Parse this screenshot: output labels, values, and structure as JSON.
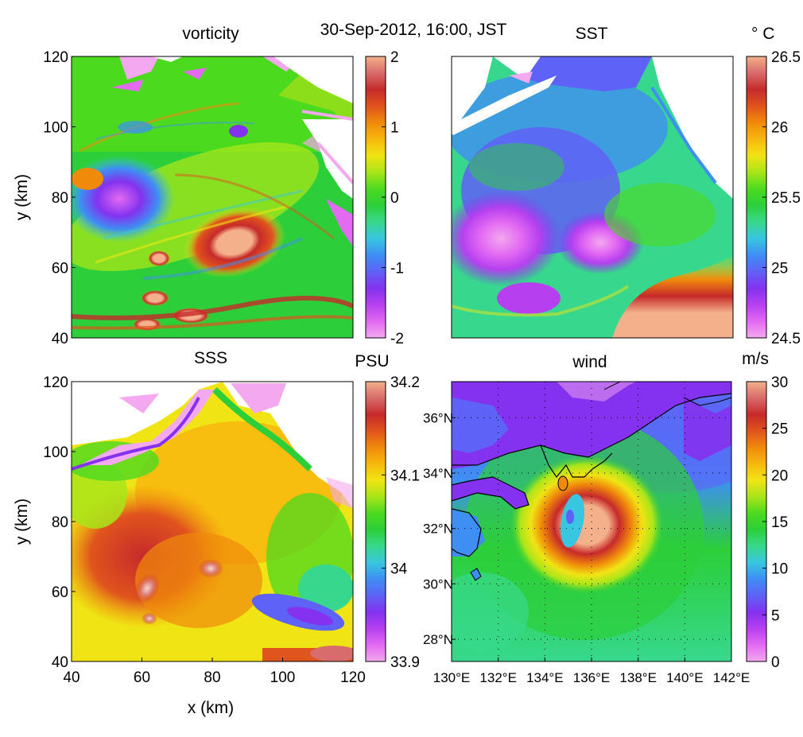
{
  "figure_title": "30-Sep-2012, 16:00, JST",
  "colors": {
    "colormap": [
      "#f3a8ef",
      "#e36af2",
      "#b640f0",
      "#8432ef",
      "#5f62f6",
      "#3e8ef4",
      "#38c6e0",
      "#37d88d",
      "#2ccf39",
      "#4cda1f",
      "#a8e51a",
      "#f0e414",
      "#f7b80e",
      "#f08a0b",
      "#e0541d",
      "#c62a2a",
      "#d86b6b",
      "#f4b08a"
    ],
    "coast": "#000000",
    "grid_dots": "#000000"
  },
  "chart_data": [
    {
      "type": "heatmap",
      "title": "vorticity",
      "unit": "",
      "xlim": [
        40,
        120
      ],
      "ylim": [
        40,
        120
      ],
      "xticks": [
        "40",
        "60",
        "80",
        "100",
        "120"
      ],
      "yticks": [
        "40",
        "60",
        "80",
        "100",
        "120"
      ],
      "ylabel": "y (km)",
      "xlabel": "",
      "colorbar_ticks": [
        "-2",
        "-1",
        "0",
        "1",
        "2"
      ],
      "clim": [
        -2,
        2
      ]
    },
    {
      "type": "heatmap",
      "title": "SST",
      "unit": "° C",
      "xlim": [
        40,
        120
      ],
      "ylim": [
        40,
        120
      ],
      "colorbar_ticks": [
        "24.5",
        "25",
        "25.5",
        "26",
        "26.5"
      ],
      "clim": [
        24.5,
        26.5
      ]
    },
    {
      "type": "heatmap",
      "title": "SSS",
      "unit": "PSU",
      "xlim": [
        40,
        120
      ],
      "ylim": [
        40,
        120
      ],
      "xticks": [
        "40",
        "60",
        "80",
        "100",
        "120"
      ],
      "yticks": [
        "40",
        "60",
        "80",
        "100",
        "120"
      ],
      "xlabel": "x (km)",
      "ylabel": "y (km)",
      "colorbar_ticks": [
        "33.9",
        "34",
        "34.1",
        "34.2"
      ],
      "clim": [
        33.9,
        34.2
      ]
    },
    {
      "type": "heatmap",
      "title": "wind",
      "unit": "m/s",
      "lon_ticks": [
        "130°E",
        "132°E",
        "134°E",
        "136°E",
        "138°E",
        "140°E",
        "142°E"
      ],
      "lat_ticks": [
        "28°N",
        "30°N",
        "32°N",
        "34°N",
        "36°N"
      ],
      "lon_range": [
        130,
        142
      ],
      "lat_range": [
        27.2,
        37.3
      ],
      "colorbar_ticks": [
        "0",
        "5",
        "10",
        "15",
        "20",
        "25",
        "30"
      ],
      "clim": [
        0,
        30
      ]
    }
  ]
}
